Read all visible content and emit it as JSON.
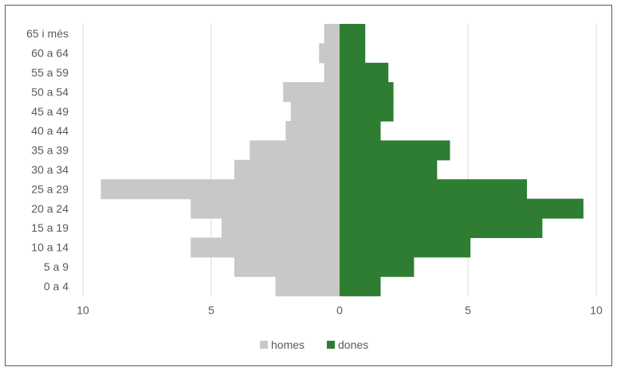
{
  "chart_data": {
    "type": "bar",
    "orientation": "horizontal",
    "layout": "population-pyramid",
    "categories": [
      "65 i més",
      "60 a 64",
      "55 a 59",
      "50 a 54",
      "45 a 49",
      "40 a 44",
      "35 a 39",
      "30 a 34",
      "25 a 29",
      "20 a 24",
      "15 a 19",
      "10 a 14",
      "5 a 9",
      "0 a 4"
    ],
    "series": [
      {
        "name": "homes",
        "side": "left",
        "color": "#c8c8c8",
        "values": [
          0.6,
          0.8,
          0.6,
          2.2,
          1.9,
          2.1,
          3.5,
          4.1,
          9.3,
          5.8,
          4.6,
          5.8,
          4.1,
          2.5
        ]
      },
      {
        "name": "dones",
        "side": "right",
        "color": "#2e7d32",
        "values": [
          1.0,
          1.0,
          1.9,
          2.1,
          2.1,
          1.6,
          4.3,
          3.8,
          7.3,
          9.5,
          7.9,
          5.1,
          2.9,
          1.6
        ]
      }
    ],
    "xlim": [
      -10,
      10
    ],
    "xticks": [
      "10",
      "5",
      "0",
      "5",
      "10"
    ],
    "grid": "vertical",
    "legend": "bottom"
  }
}
